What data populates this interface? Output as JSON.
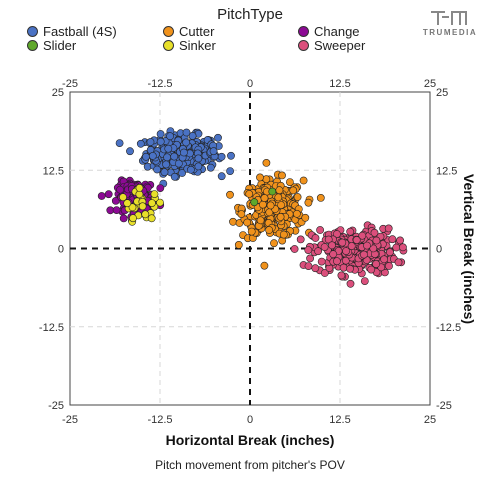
{
  "legend": {
    "title": "PitchType",
    "items": [
      {
        "label": "Fastball (4S)",
        "color": "#4a72c4"
      },
      {
        "label": "Slider",
        "color": "#5fa82b"
      },
      {
        "label": "Cutter",
        "color": "#f0921c"
      },
      {
        "label": "Sinker",
        "color": "#e8e02a"
      },
      {
        "label": "Change",
        "color": "#8c0a94"
      },
      {
        "label": "Sweeper",
        "color": "#db4f7c"
      }
    ]
  },
  "logo": {
    "text": "TRUMEDIA",
    "icon": "trumedia-logo-icon"
  },
  "caption": "Pitch movement from pitcher's POV",
  "chart_data": {
    "type": "scatter",
    "title": "",
    "xlabel": "Horizontal Break (inches)",
    "ylabel": "Vertical Break (inches)",
    "xlim": [
      -25,
      25
    ],
    "ylim": [
      -25,
      25
    ],
    "xticks": [
      -25,
      -12.5,
      0,
      12.5,
      25
    ],
    "yticks": [
      -25,
      -12.5,
      0,
      12.5,
      25
    ],
    "xtick_labels": [
      "-25",
      "-12.5",
      "0",
      "12.5",
      "25"
    ],
    "ytick_labels": [
      "-25",
      "-12.5",
      "0",
      "12.5",
      "25"
    ],
    "grid": true,
    "reference_lines": {
      "x": 0,
      "y": 0,
      "style": "dashed"
    },
    "legend_position": "top",
    "series": [
      {
        "name": "Fastball (4S)",
        "color": "#4a72c4",
        "count": 320,
        "centroid": {
          "x": -9.5,
          "y": 15.2
        },
        "spread": {
          "x": 3.3,
          "y": 1.9
        }
      },
      {
        "name": "Cutter",
        "color": "#f0921c",
        "count": 330,
        "centroid": {
          "x": 3.2,
          "y": 6.3
        },
        "spread": {
          "x": 2.8,
          "y": 3.0
        }
      },
      {
        "name": "Sweeper",
        "color": "#db4f7c",
        "count": 300,
        "centroid": {
          "x": 14.5,
          "y": -0.5
        },
        "spread": {
          "x": 3.8,
          "y": 2.4
        }
      },
      {
        "name": "Change",
        "color": "#8c0a94",
        "count": 150,
        "centroid": {
          "x": -15.8,
          "y": 8.2
        },
        "spread": {
          "x": 1.7,
          "y": 1.6
        }
      },
      {
        "name": "Sinker",
        "color": "#e8e02a",
        "count": 30,
        "centroid": {
          "x": -15.0,
          "y": 6.8
        },
        "spread": {
          "x": 2.0,
          "y": 1.6
        }
      },
      {
        "name": "Slider",
        "color": "#5fa82b",
        "count": 2,
        "points": [
          {
            "x": 3.1,
            "y": 9.1
          },
          {
            "x": 0.6,
            "y": 7.4
          }
        ]
      }
    ]
  }
}
